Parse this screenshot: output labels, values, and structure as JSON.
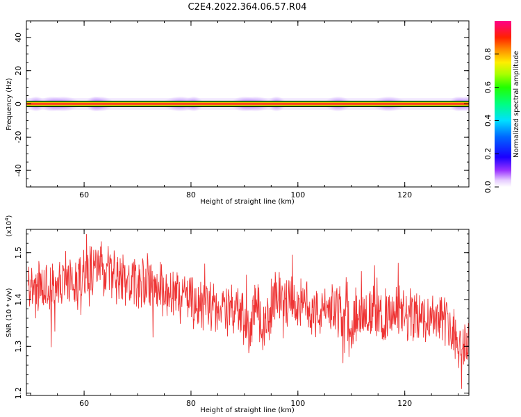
{
  "figure": {
    "title": "C2E4.2022.364.06.57.R04"
  },
  "chart_data": [
    {
      "type": "heatmap",
      "xlabel": "Height of straight line (km)",
      "ylabel": "Frequency (Hz)",
      "xlim": [
        49.2,
        132
      ],
      "ylim": [
        -50,
        50
      ],
      "xticks": [
        60,
        80,
        100,
        120
      ],
      "yticks": [
        -40,
        -20,
        0,
        20,
        40
      ],
      "colorbar": {
        "label": "Normalized spectral amplitude",
        "ticks": [
          0.0,
          0.2,
          0.4,
          0.6,
          0.8
        ],
        "range": [
          0,
          1
        ]
      },
      "band": {
        "center_hz": 0,
        "half_width_hz": 1.8
      },
      "blob_positions_km": [
        51,
        54,
        56,
        62,
        63,
        78,
        80.5,
        90,
        92,
        96,
        107.5,
        117,
        130,
        131.5
      ],
      "legend": "right (colorbar)",
      "grid": false
    },
    {
      "type": "line",
      "xlabel": "Height of straight line (km)",
      "ylabel": "SNR (10 * v/v)",
      "y_scale_label": "(x10",
      "y_scale_exp": "4",
      "y_scale_close": ")",
      "xlim": [
        49.2,
        132
      ],
      "ylim": [
        1.195,
        1.55
      ],
      "xticks": [
        60,
        80,
        100,
        120
      ],
      "yticks": [
        1.2,
        1.3,
        1.4,
        1.5
      ],
      "series_color": "#ee3333",
      "x": [
        49.5,
        51,
        53,
        55,
        57,
        59,
        61,
        62.5,
        64,
        66,
        68,
        70,
        72,
        74,
        76,
        78,
        79.5,
        81,
        83,
        85,
        87,
        89,
        90.8,
        92,
        93.8,
        95,
        96,
        98,
        100,
        102,
        104,
        106,
        108,
        110,
        112,
        114,
        116,
        118,
        120,
        122,
        124,
        126,
        127.5,
        128.5,
        129.5,
        130.5,
        131.5
      ],
      "y": [
        1.43,
        1.42,
        1.42,
        1.43,
        1.44,
        1.45,
        1.46,
        1.47,
        1.46,
        1.45,
        1.44,
        1.43,
        1.44,
        1.42,
        1.41,
        1.4,
        1.41,
        1.39,
        1.38,
        1.39,
        1.37,
        1.38,
        1.33,
        1.39,
        1.34,
        1.36,
        1.42,
        1.4,
        1.39,
        1.38,
        1.37,
        1.38,
        1.37,
        1.36,
        1.38,
        1.37,
        1.36,
        1.37,
        1.36,
        1.37,
        1.36,
        1.37,
        1.36,
        1.35,
        1.33,
        1.3,
        1.31
      ],
      "grid": false
    }
  ]
}
